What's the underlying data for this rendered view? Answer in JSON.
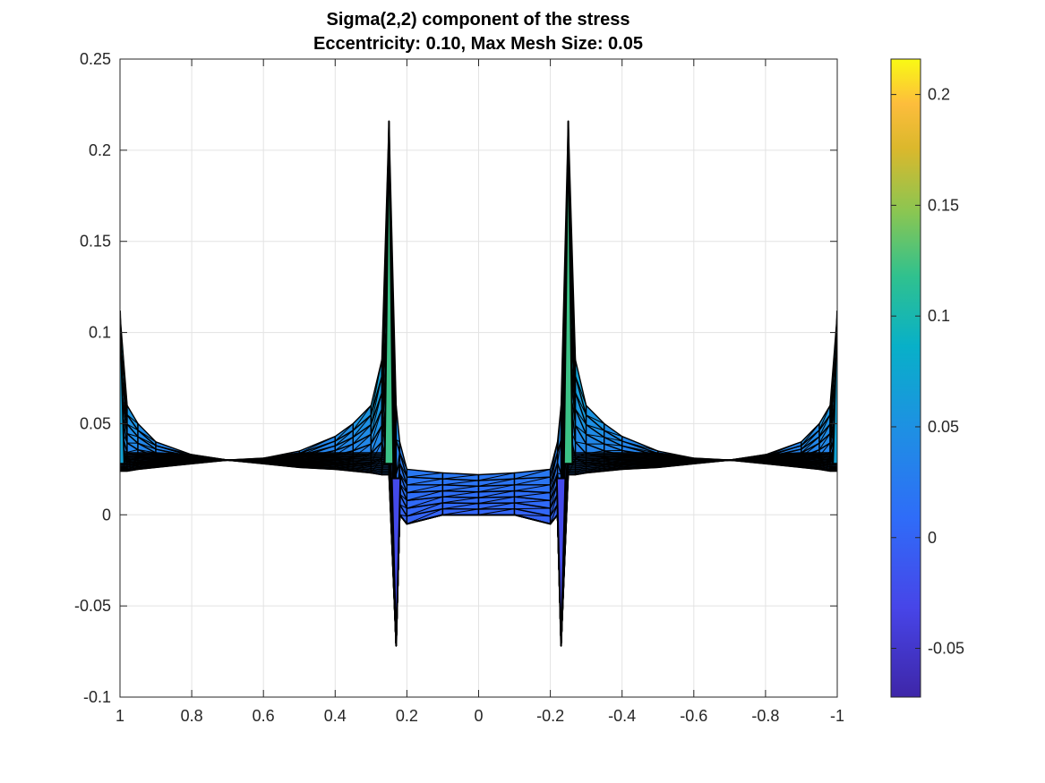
{
  "chart_data": {
    "type": "surface-view",
    "title_lines": [
      "Sigma(2,2) component of the stress",
      "Eccentricity: 0.10, Max Mesh Size: 0.05"
    ],
    "xlabel": "",
    "ylabel": "",
    "x_direction": "reversed",
    "xlim": [
      -1,
      1
    ],
    "ylim": [
      -0.1,
      0.25
    ],
    "x_ticks": [
      1,
      0.8,
      0.6,
      0.4,
      0.2,
      0,
      -0.2,
      -0.4,
      -0.6,
      -0.8,
      -1
    ],
    "x_tick_labels": [
      "1",
      "0.8",
      "0.6",
      "0.4",
      "0.2",
      "0",
      "-0.2",
      "-0.4",
      "-0.6",
      "-0.8",
      "-1"
    ],
    "y_ticks": [
      0.25,
      0.2,
      0.15,
      0.1,
      0.05,
      0,
      -0.05,
      -0.1
    ],
    "y_tick_labels": [
      "0.25",
      "0.2",
      "0.15",
      "0.1",
      "0.05",
      "0",
      "-0.05",
      "-0.1"
    ],
    "grid": true,
    "colormap": "parula",
    "edge_color": "#000000",
    "colorbar": {
      "limits": [
        -0.072,
        0.216
      ],
      "ticks": [
        0.2,
        0.15,
        0.1,
        0.05,
        0,
        -0.05
      ],
      "tick_labels": [
        "0.2",
        "0.15",
        "0.1",
        "0.05",
        "0",
        "-0.05"
      ],
      "placement": "right"
    },
    "profile": {
      "x": [
        1,
        0.98,
        0.95,
        0.9,
        0.8,
        0.7,
        0.6,
        0.5,
        0.4,
        0.35,
        0.3,
        0.27,
        0.25,
        0.23,
        0.22,
        0.2,
        0.1,
        0,
        -0.1,
        -0.2,
        -0.22,
        -0.23,
        -0.25,
        -0.27,
        -0.3,
        -0.35,
        -0.4,
        -0.5,
        -0.6,
        -0.7,
        -0.8,
        -0.9,
        -0.95,
        -0.98,
        -1
      ],
      "upper": [
        0.11,
        0.06,
        0.05,
        0.04,
        0.033,
        0.03,
        0.031,
        0.035,
        0.043,
        0.05,
        0.06,
        0.085,
        0.216,
        0.06,
        0.04,
        0.025,
        0.023,
        0.022,
        0.023,
        0.025,
        0.04,
        0.06,
        0.216,
        0.085,
        0.06,
        0.05,
        0.043,
        0.035,
        0.031,
        0.03,
        0.033,
        0.04,
        0.05,
        0.06,
        0.11
      ],
      "lower": [
        0.024,
        0.024,
        0.025,
        0.026,
        0.028,
        0.03,
        0.028,
        0.026,
        0.025,
        0.024,
        0.023,
        0.022,
        0.022,
        -0.072,
        0.0,
        -0.005,
        0.0,
        0.0,
        0.0,
        -0.005,
        0.0,
        -0.072,
        0.022,
        0.022,
        0.023,
        0.024,
        0.025,
        0.026,
        0.028,
        0.03,
        0.028,
        0.026,
        0.025,
        0.024,
        0.024
      ]
    },
    "spikes": [
      {
        "x": 0.25,
        "y": 0.216
      },
      {
        "x": -0.25,
        "y": 0.216
      },
      {
        "x": 0.23,
        "y": -0.072
      },
      {
        "x": -0.23,
        "y": -0.072
      },
      {
        "x": 1,
        "y": 0.112
      },
      {
        "x": -1,
        "y": 0.112
      }
    ]
  }
}
